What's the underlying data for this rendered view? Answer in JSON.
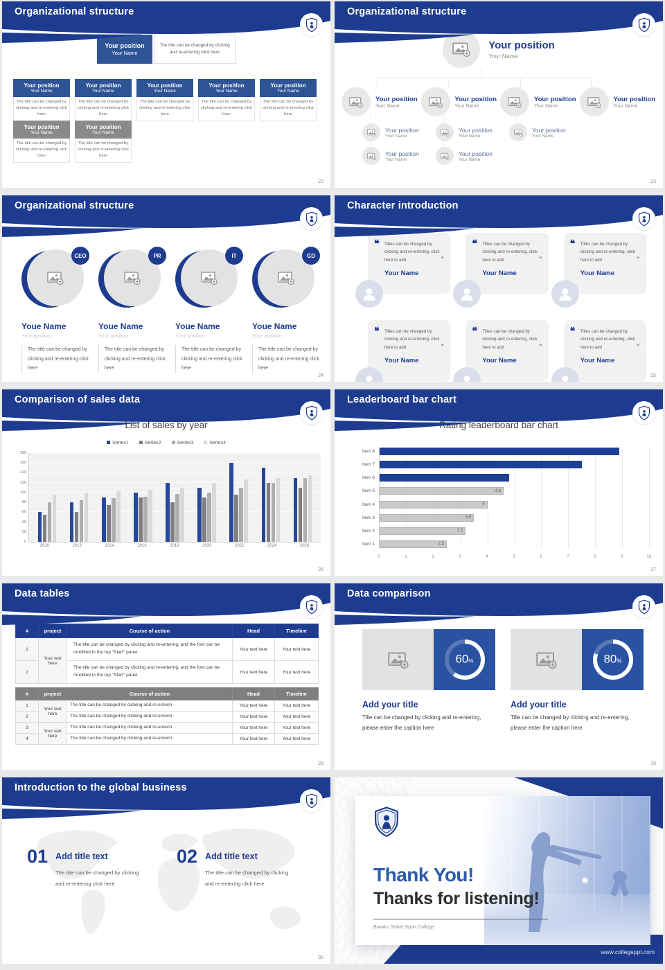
{
  "colors": {
    "primary_blue": "#1e3c8f",
    "box_blue": "#2f5496",
    "gray_box": "#8a8a8a",
    "bar_blue": "#1e3f96",
    "panel_blue": "#2a52a2",
    "bar_gray": "#c9c9c9"
  },
  "chart_data": [
    {
      "type": "bar",
      "title": "List of sales by year",
      "categories": [
        "2010",
        "2012",
        "2014",
        "2016",
        "2018",
        "2020",
        "2022",
        "2024",
        "2026"
      ],
      "series": [
        {
          "name": "Series1",
          "color": "#26489c",
          "values": [
            60,
            80,
            90,
            100,
            120,
            110,
            160,
            150,
            130
          ]
        },
        {
          "name": "Series2",
          "color": "#7f7f7f",
          "values": [
            55,
            60,
            75,
            90,
            80,
            90,
            95,
            120,
            110
          ]
        },
        {
          "name": "Series3",
          "color": "#aeaeae",
          "values": [
            80,
            85,
            88,
            92,
            97,
            100,
            110,
            120,
            130
          ]
        },
        {
          "name": "Series4",
          "color": "#d9d9d9",
          "values": [
            95,
            100,
            102,
            105,
            110,
            120,
            126,
            130,
            135
          ]
        }
      ],
      "ylim": [
        0,
        180
      ],
      "yticks": [
        0,
        20,
        40,
        60,
        80,
        100,
        120,
        140,
        160,
        180
      ],
      "legend_position": "top",
      "grid": false
    },
    {
      "type": "bar-horizontal",
      "title": "Rating leaderboard bar chart",
      "categories": [
        "Item 8",
        "Item 7",
        "Item 6",
        "Item 5",
        "Item 4",
        "Item 3",
        "Item 2",
        "Item 1"
      ],
      "values": [
        8.9,
        7.5,
        4.8,
        4.6,
        4,
        3.5,
        3.2,
        2.5
      ],
      "labels": [
        "",
        "",
        "",
        "4.6",
        "4",
        "3.5",
        "3.2",
        "2.5"
      ],
      "colors": [
        "blue",
        "blue",
        "blue",
        "gray",
        "gray",
        "gray",
        "gray",
        "gray"
      ],
      "xlim": [
        0,
        10
      ],
      "xticks": [
        "0",
        "1",
        "2",
        "3",
        "4",
        "5",
        "6",
        "7",
        "8",
        "9",
        "10"
      ],
      "grid": true
    },
    {
      "type": "donut",
      "value": 60,
      "label": "60%"
    },
    {
      "type": "donut",
      "value": 80,
      "label": "80%"
    }
  ],
  "slides": {
    "org_boxes": {
      "title": "Organizational structure",
      "page": "22",
      "root": {
        "position": "Your position",
        "name": "Your Name"
      },
      "root_note": "The title can be changed by clicking and re-entering click here",
      "row1": [
        {
          "position": "Your position",
          "name": "Your Name",
          "desc": "The title can be changed by clicking and re-entering click here"
        },
        {
          "position": "Your position",
          "name": "Your Name",
          "desc": "The title can be changed by clicking and re-entering click here"
        },
        {
          "position": "Your position",
          "name": "Your Name",
          "desc": "The title can be changed by clicking and re-entering click here"
        },
        {
          "position": "Your position",
          "name": "Your Name",
          "desc": "The title can be changed by clicking and re-entering click here"
        },
        {
          "position": "Your position",
          "name": "Your Name",
          "desc": "The title can be changed by clicking and re-entering click here"
        }
      ],
      "row2": [
        {
          "position": "Your position",
          "name": "Your Name",
          "desc": "The title can be changed by clicking and re-entering click here"
        },
        {
          "position": "Your position",
          "name": "Your Name",
          "desc": "The title can be changed by clicking and re-entering click here"
        }
      ]
    },
    "org_photos": {
      "title": "Organizational structure",
      "page": "23",
      "root": {
        "position": "Your position",
        "name": "Your Name"
      },
      "level2": [
        {
          "position": "Your position",
          "name": "Your Name"
        },
        {
          "position": "Your position",
          "name": "Your Name"
        },
        {
          "position": "Your position",
          "name": "Your Name"
        },
        {
          "position": "Your position",
          "name": "Your Name"
        }
      ],
      "level3": [
        {
          "position": "Your position",
          "name": "Your Name"
        },
        {
          "position": "Your position",
          "name": "Your Name"
        },
        {
          "position": "Your position",
          "name": "Your Name"
        }
      ],
      "level4": [
        {
          "position": "Your position",
          "name": "Your Name"
        },
        {
          "position": "Your position",
          "name": "Your Name"
        }
      ]
    },
    "org_leaders": {
      "title": "Organizational structure",
      "page": "24",
      "members": [
        {
          "badge": "CEO",
          "name": "Youe Name",
          "position": "Your position",
          "desc": "The title can be changed by clicking and re-entering click here"
        },
        {
          "badge": "PR",
          "name": "Youe Name",
          "position": "Your position",
          "desc": "The title can be changed by clicking and re-entering click here"
        },
        {
          "badge": "IT",
          "name": "Youe Name",
          "position": "Your position",
          "desc": "The title can be changed by clicking and re-entering click here"
        },
        {
          "badge": "GD",
          "name": "Youe Name",
          "position": "Your position",
          "desc": "The title can be changed by clicking and re-entering click here"
        }
      ]
    },
    "characters": {
      "title": "Character introduction",
      "page": "25",
      "cards": [
        {
          "quote": "Titles can be changed by clicking and re-entering, click here to add",
          "name": "Your Name"
        },
        {
          "quote": "Titles can be changed by clicking and re-entering, click here to add",
          "name": "Your Name"
        },
        {
          "quote": "Titles can be changed by clicking and re-entering, click here to add",
          "name": "Your Name"
        },
        {
          "quote": "Titles can be changed by clicking and re-entering, click here to add",
          "name": "Your Name"
        },
        {
          "quote": "Titles can be changed by clicking and re-entering, click here to add",
          "name": "Your Name"
        },
        {
          "quote": "Titles can be changed by clicking and re-entering, click here to add",
          "name": "Your Name"
        }
      ]
    },
    "sales": {
      "title": "Comparison of sales data",
      "page": "26",
      "chart_title": "List of sales by year"
    },
    "leaderboard": {
      "title": "Leaderboard bar chart",
      "page": "27",
      "chart_title": "Rating leaderboard bar chart"
    },
    "tables": {
      "title": "Data tables",
      "page": "28",
      "table1": {
        "headers": [
          "#",
          "project",
          "Course of action",
          "Head",
          "Timeline"
        ],
        "rows": [
          {
            "num": "1",
            "project": "Your text here",
            "course": "The title can be changed by clicking and re-entering, and the font can be modified in the top \"Start\" panel",
            "head": "Your text here",
            "timeline": "Your text here"
          },
          {
            "num": "2",
            "course": "The title can be changed by clicking and re-entering, and the font can be modified in the top \"Start\" panel",
            "head": "Your text here",
            "timeline": "Your text here"
          }
        ]
      },
      "table2": {
        "headers": [
          "#",
          "project",
          "Course of action",
          "Head",
          "Timeline"
        ],
        "projects": [
          "Your text here",
          "Your text here"
        ],
        "rows": [
          {
            "num": "1",
            "course": "The title can be changed by clicking and re-enterin",
            "head": "Your text here",
            "timeline": "Your text here"
          },
          {
            "num": "2",
            "course": "The title can be changed by clicking and re-enterin",
            "head": "Your text here",
            "timeline": "Your text here"
          },
          {
            "num": "3",
            "course": "The title can be changed by clicking and re-enterin",
            "head": "Your text here",
            "timeline": "Your text here"
          },
          {
            "num": "4",
            "course": "The title can be changed by clicking and re-enterin",
            "head": "Your text here",
            "timeline": "Your text here"
          }
        ]
      }
    },
    "comparison": {
      "title": "Data comparison",
      "page": "29",
      "blocks": [
        {
          "percent": "60",
          "unit": "%",
          "heading": "Add your title",
          "caption": "Tille can be changed by clicking and re-entering, please enter the caption here"
        },
        {
          "percent": "80",
          "unit": "%",
          "heading": "Add your title",
          "caption": "Tille can be changed by clicking and re-entering, please enter the caption here"
        }
      ]
    },
    "global": {
      "title": "Introduction to the global business",
      "page": "30",
      "items": [
        {
          "num": "01",
          "heading": "Add title text",
          "desc": "The title can be changed by clicking and re-entering click here"
        },
        {
          "num": "02",
          "heading": "Add title text",
          "desc": "The title can be changed by clicking and re-entering click here"
        }
      ]
    },
    "thanks": {
      "line1": "Thank You!",
      "line2": "Thanks for listening!",
      "subtitle": "Biwako Seikei Sport College",
      "site": "www.collegeppt.com"
    }
  }
}
